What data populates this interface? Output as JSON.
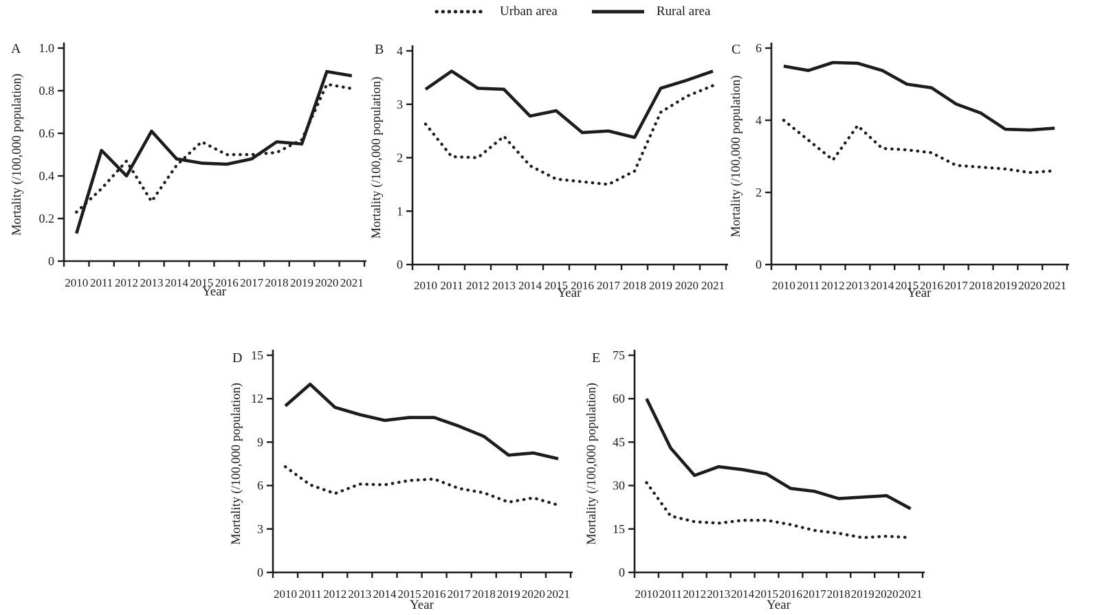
{
  "figure": {
    "legend": {
      "items": [
        {
          "label": "Urban area",
          "style": "dotted"
        },
        {
          "label": "Rural area",
          "style": "solid"
        }
      ]
    }
  },
  "colors": {
    "line": "#1c1c1c",
    "text": "#1c1c1c",
    "background": "#ffffff"
  },
  "chart_data": [
    {
      "panel": "A",
      "type": "line",
      "title": "",
      "xlabel": "Year",
      "ylabel": "Mortality (/100,000 population)",
      "x": [
        2010,
        2011,
        2012,
        2013,
        2014,
        2015,
        2016,
        2017,
        2018,
        2019,
        2020,
        2021
      ],
      "ylim": [
        0,
        1.0
      ],
      "yticks": [
        "0",
        "0.2",
        "0.4",
        "0.6",
        "0.8",
        "1.0"
      ],
      "grid": false,
      "legend_position": "top-center-shared",
      "series": [
        {
          "name": "Urban area",
          "style": "dotted",
          "values": [
            0.23,
            0.34,
            0.47,
            0.28,
            0.45,
            0.56,
            0.5,
            0.5,
            0.51,
            0.57,
            0.83,
            0.81
          ]
        },
        {
          "name": "Rural area",
          "style": "solid",
          "values": [
            0.13,
            0.52,
            0.4,
            0.61,
            0.48,
            0.46,
            0.455,
            0.48,
            0.56,
            0.55,
            0.89,
            0.87
          ]
        }
      ]
    },
    {
      "panel": "B",
      "type": "line",
      "title": "",
      "xlabel": "Year",
      "ylabel": "Mortality (/100,000 population)",
      "x": [
        2010,
        2011,
        2012,
        2013,
        2014,
        2015,
        2016,
        2017,
        2018,
        2019,
        2020,
        2021
      ],
      "ylim": [
        0,
        4
      ],
      "yticks": [
        "0",
        "1",
        "2",
        "3",
        "4"
      ],
      "grid": false,
      "legend_position": "top-center-shared",
      "series": [
        {
          "name": "Urban area",
          "style": "dotted",
          "values": [
            2.63,
            2.02,
            2.0,
            2.4,
            1.85,
            1.6,
            1.55,
            1.5,
            1.75,
            2.85,
            3.15,
            3.35
          ]
        },
        {
          "name": "Rural area",
          "style": "solid",
          "values": [
            3.28,
            3.62,
            3.3,
            3.28,
            2.78,
            2.88,
            2.47,
            2.5,
            2.38,
            3.3,
            3.45,
            3.62
          ]
        }
      ]
    },
    {
      "panel": "C",
      "type": "line",
      "title": "",
      "xlabel": "Year",
      "ylabel": "Mortality (/100,000 population)",
      "x": [
        2010,
        2011,
        2012,
        2013,
        2014,
        2015,
        2016,
        2017,
        2018,
        2019,
        2020,
        2021
      ],
      "ylim": [
        0,
        6
      ],
      "yticks": [
        "0",
        "2",
        "4",
        "6"
      ],
      "grid": false,
      "legend_position": "top-center-shared",
      "series": [
        {
          "name": "Urban area",
          "style": "dotted",
          "values": [
            4.0,
            3.45,
            2.9,
            3.85,
            3.22,
            3.18,
            3.1,
            2.75,
            2.7,
            2.65,
            2.55,
            2.6
          ]
        },
        {
          "name": "Rural area",
          "style": "solid",
          "values": [
            5.5,
            5.38,
            5.6,
            5.58,
            5.38,
            5.0,
            4.9,
            4.45,
            4.2,
            3.75,
            3.73,
            3.78
          ]
        }
      ]
    },
    {
      "panel": "D",
      "type": "line",
      "title": "",
      "xlabel": "Year",
      "ylabel": "Mortality (/100,000 population)",
      "x": [
        2010,
        2011,
        2012,
        2013,
        2014,
        2015,
        2016,
        2017,
        2018,
        2019,
        2020,
        2021
      ],
      "ylim": [
        0,
        15
      ],
      "yticks": [
        "0",
        "3",
        "6",
        "9",
        "12",
        "15"
      ],
      "grid": false,
      "legend_position": "top-center-shared",
      "series": [
        {
          "name": "Urban area",
          "style": "dotted",
          "values": [
            7.3,
            6.05,
            5.45,
            6.1,
            6.05,
            6.35,
            6.45,
            5.8,
            5.5,
            4.85,
            5.15,
            4.65
          ]
        },
        {
          "name": "Rural area",
          "style": "solid",
          "values": [
            11.5,
            13.0,
            11.4,
            10.9,
            10.5,
            10.7,
            10.7,
            10.1,
            9.4,
            8.1,
            8.25,
            7.85
          ]
        }
      ]
    },
    {
      "panel": "E",
      "type": "line",
      "title": "",
      "xlabel": "Year",
      "ylabel": "Mortality (/100,000 population)",
      "x": [
        2010,
        2011,
        2012,
        2013,
        2014,
        2015,
        2016,
        2017,
        2018,
        2019,
        2020,
        2021
      ],
      "ylim": [
        0,
        75
      ],
      "yticks": [
        "0",
        "15",
        "30",
        "45",
        "60",
        "75"
      ],
      "grid": false,
      "legend_position": "top-center-shared",
      "series": [
        {
          "name": "Urban area",
          "style": "dotted",
          "values": [
            31,
            19.5,
            17.5,
            17,
            18,
            18,
            16.5,
            14.5,
            13.5,
            12,
            12.5,
            12
          ]
        },
        {
          "name": "Rural area",
          "style": "solid",
          "values": [
            60,
            43,
            33.5,
            36.5,
            35.5,
            34,
            29,
            28,
            25.5,
            26,
            26.5,
            22
          ]
        }
      ]
    }
  ]
}
